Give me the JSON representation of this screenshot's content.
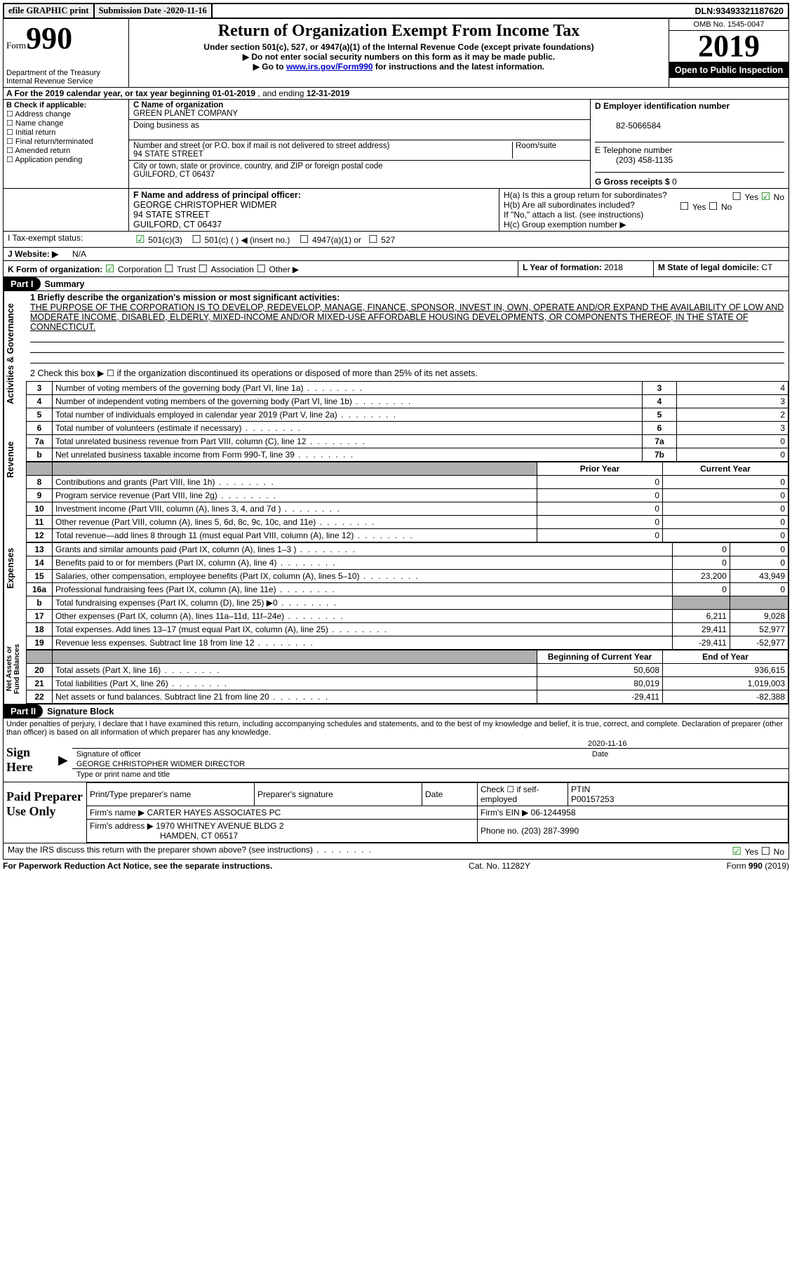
{
  "top": {
    "efile": "efile GRAPHIC print",
    "submission_label": "Submission Date - ",
    "submission_date": "2020-11-16",
    "dln_label": "DLN: ",
    "dln": "93493321187620"
  },
  "header": {
    "form_prefix": "Form",
    "form_number": "990",
    "dept1": "Department of the Treasury",
    "dept2": "Internal Revenue Service",
    "title": "Return of Organization Exempt From Income Tax",
    "sub1": "Under section 501(c), 527, or 4947(a)(1) of the Internal Revenue Code (except private foundations)",
    "sub2": "Do not enter social security numbers on this form as it may be made public.",
    "sub3_pre": "Go to ",
    "sub3_link": "www.irs.gov/Form990",
    "sub3_post": " for instructions and the latest information.",
    "omb": "OMB No. 1545-0047",
    "year": "2019",
    "open": "Open to Public Inspection"
  },
  "A": {
    "text_pre": "A For the 2019 calendar year, or tax year beginning ",
    "begin": "01-01-2019",
    "mid": "   , and ending ",
    "end": "12-31-2019"
  },
  "B": {
    "header": "B Check if applicable:",
    "opts": [
      "Address change",
      "Name change",
      "Initial return",
      "Final return/terminated",
      "Amended return",
      "Application pending"
    ]
  },
  "C": {
    "name_lbl": "C Name of organization",
    "name": "GREEN PLANET COMPANY",
    "dba_lbl": "Doing business as",
    "dba": "",
    "street_lbl": "Number and street (or P.O. box if mail is not delivered to street address)",
    "room_lbl": "Room/suite",
    "street": "94 STATE STREET",
    "city_lbl": "City or town, state or province, country, and ZIP or foreign postal code",
    "city": "GUILFORD, CT  06437"
  },
  "D": {
    "lbl": "D Employer identification number",
    "val": "82-5066584"
  },
  "E": {
    "lbl": "E Telephone number",
    "val": "(203) 458-1135"
  },
  "G": {
    "lbl": "G Gross receipts $ ",
    "val": "0"
  },
  "F": {
    "lbl": "F Name and address of principal officer:",
    "name": "GEORGE CHRISTOPHER WIDMER",
    "street": "94 STATE STREET",
    "city": "GUILFORD, CT  06437"
  },
  "H": {
    "a": "H(a)  Is this a group return for subordinates?",
    "a_yes": "Yes",
    "a_no": "No",
    "b": "H(b)  Are all subordinates included?",
    "b_note": "If \"No,\" attach a list. (see instructions)",
    "c": "H(c)  Group exemption number ▶"
  },
  "I": {
    "lbl": "I   Tax-exempt status:",
    "o1": "501(c)(3)",
    "o2": "501(c) (  ) ◀ (insert no.)",
    "o3": "4947(a)(1) or",
    "o4": "527"
  },
  "J": {
    "lbl": "J   Website: ▶",
    "val": "N/A"
  },
  "K": {
    "lbl": "K Form of organization:",
    "o1": "Corporation",
    "o2": "Trust",
    "o3": "Association",
    "o4": "Other ▶"
  },
  "L": {
    "lbl": "L Year of formation: ",
    "val": "2018"
  },
  "M": {
    "lbl": "M State of legal domicile: ",
    "val": "CT"
  },
  "partI": {
    "num": "Part I",
    "title": "Summary"
  },
  "summary": {
    "l1_lbl": "1  Briefly describe the organization's mission or most significant activities:",
    "l1_text": "THE PURPOSE OF THE CORPORATION IS TO DEVELOP, REDEVELOP, MANAGE, FINANCE, SPONSOR, INVEST IN, OWN, OPERATE AND/OR EXPAND THE AVAILABILITY OF LOW AND MODERATE INCOME, DISABLED, ELDERLY, MIXED-INCOME AND/OR MIXED-USE AFFORDABLE HOUSING DEVELOPMENTS, OR COMPONENTS THEREOF, IN THE STATE OF CONNECTICUT.",
    "l2": "2   Check this box ▶ ☐  if the organization discontinued its operations or disposed of more than 25% of its net assets.",
    "rows_ag": [
      {
        "n": "3",
        "d": "Number of voting members of the governing body (Part VI, line 1a)",
        "box": "3",
        "v": "4"
      },
      {
        "n": "4",
        "d": "Number of independent voting members of the governing body (Part VI, line 1b)",
        "box": "4",
        "v": "3"
      },
      {
        "n": "5",
        "d": "Total number of individuals employed in calendar year 2019 (Part V, line 2a)",
        "box": "5",
        "v": "2"
      },
      {
        "n": "6",
        "d": "Total number of volunteers (estimate if necessary)",
        "box": "6",
        "v": "3"
      },
      {
        "n": "7a",
        "d": "Total unrelated business revenue from Part VIII, column (C), line 12",
        "box": "7a",
        "v": "0"
      },
      {
        "n": "b",
        "d": "Net unrelated business taxable income from Form 990-T, line 39",
        "box": "7b",
        "v": "0"
      }
    ],
    "col_prior": "Prior Year",
    "col_curr": "Current Year",
    "rev": [
      {
        "n": "8",
        "d": "Contributions and grants (Part VIII, line 1h)",
        "p": "0",
        "c": "0"
      },
      {
        "n": "9",
        "d": "Program service revenue (Part VIII, line 2g)",
        "p": "0",
        "c": "0"
      },
      {
        "n": "10",
        "d": "Investment income (Part VIII, column (A), lines 3, 4, and 7d )",
        "p": "0",
        "c": "0"
      },
      {
        "n": "11",
        "d": "Other revenue (Part VIII, column (A), lines 5, 6d, 8c, 9c, 10c, and 11e)",
        "p": "0",
        "c": "0"
      },
      {
        "n": "12",
        "d": "Total revenue—add lines 8 through 11 (must equal Part VIII, column (A), line 12)",
        "p": "0",
        "c": "0"
      }
    ],
    "exp": [
      {
        "n": "13",
        "d": "Grants and similar amounts paid (Part IX, column (A), lines 1–3 )",
        "p": "0",
        "c": "0"
      },
      {
        "n": "14",
        "d": "Benefits paid to or for members (Part IX, column (A), line 4)",
        "p": "0",
        "c": "0"
      },
      {
        "n": "15",
        "d": "Salaries, other compensation, employee benefits (Part IX, column (A), lines 5–10)",
        "p": "23,200",
        "c": "43,949"
      },
      {
        "n": "16a",
        "d": "Professional fundraising fees (Part IX, column (A), line 11e)",
        "p": "0",
        "c": "0"
      },
      {
        "n": "b",
        "d": "Total fundraising expenses (Part IX, column (D), line 25) ▶0",
        "p": "SHADE",
        "c": "SHADE"
      },
      {
        "n": "17",
        "d": "Other expenses (Part IX, column (A), lines 11a–11d, 11f–24e)",
        "p": "6,211",
        "c": "9,028"
      },
      {
        "n": "18",
        "d": "Total expenses. Add lines 13–17 (must equal Part IX, column (A), line 25)",
        "p": "29,411",
        "c": "52,977"
      },
      {
        "n": "19",
        "d": "Revenue less expenses. Subtract line 18 from line 12",
        "p": "-29,411",
        "c": "-52,977"
      }
    ],
    "col_boy": "Beginning of Current Year",
    "col_eoy": "End of Year",
    "na": [
      {
        "n": "20",
        "d": "Total assets (Part X, line 16)",
        "p": "50,608",
        "c": "936,615"
      },
      {
        "n": "21",
        "d": "Total liabilities (Part X, line 26)",
        "p": "80,019",
        "c": "1,019,003"
      },
      {
        "n": "22",
        "d": "Net assets or fund balances. Subtract line 21 from line 20",
        "p": "-29,411",
        "c": "-82,388"
      }
    ],
    "tab_ag": "Activities & Governance",
    "tab_rev": "Revenue",
    "tab_exp": "Expenses",
    "tab_na": "Net Assets or Fund Balances"
  },
  "partII": {
    "num": "Part II",
    "title": "Signature Block"
  },
  "sig": {
    "decl": "Under penalties of perjury, I declare that I have examined this return, including accompanying schedules and statements, and to the best of my knowledge and belief, it is true, correct, and complete. Declaration of preparer (other than officer) is based on all information of which preparer has any knowledge.",
    "sign_here": "Sign Here",
    "sig_officer": "Signature of officer",
    "sig_date": "2020-11-16",
    "date_lbl": "Date",
    "name_title": "GEORGE CHRISTOPHER WIDMER DIRECTOR",
    "name_lbl": "Type or print name and title",
    "paid": "Paid Preparer Use Only",
    "pt_name_lbl": "Print/Type preparer's name",
    "pt_sig_lbl": "Preparer's signature",
    "pt_date_lbl": "Date",
    "pt_check": "Check ☐ if self-employed",
    "ptin_lbl": "PTIN",
    "ptin": "P00157253",
    "firm_name_lbl": "Firm's name    ▶ ",
    "firm_name": "CARTER HAYES ASSOCIATES PC",
    "firm_ein_lbl": "Firm's EIN ▶ ",
    "firm_ein": "06-1244958",
    "firm_addr_lbl": "Firm's address ▶ ",
    "firm_addr1": "1970 WHITNEY AVENUE BLDG 2",
    "firm_addr2": "HAMDEN, CT  06517",
    "phone_lbl": "Phone no. ",
    "phone": "(203) 287-3990",
    "discuss": "May the IRS discuss this return with the preparer shown above? (see instructions)",
    "yes": "Yes",
    "no": "No"
  },
  "footer": {
    "left": "For Paperwork Reduction Act Notice, see the separate instructions.",
    "mid": "Cat. No. 11282Y",
    "right": "Form 990 (2019)"
  }
}
